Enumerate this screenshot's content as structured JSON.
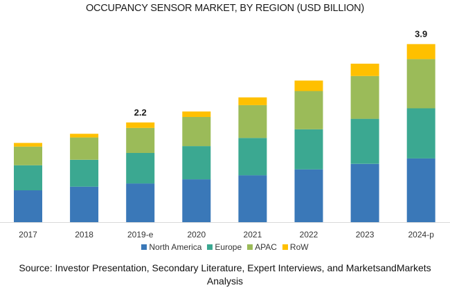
{
  "chart_data": {
    "type": "bar",
    "stacked": true,
    "title": "OCCUPANCY SENSOR MARKET, BY REGION (USD BILLION)",
    "xlabel": "",
    "ylabel": "",
    "ylim": [
      0,
      4.2
    ],
    "grid": false,
    "legend_position": "bottom",
    "categories": [
      "2017",
      "2018",
      "2019-e",
      "2020",
      "2021",
      "2022",
      "2023",
      "2024-p"
    ],
    "series": [
      {
        "name": "North America",
        "color": "#3A78B8",
        "values": [
          0.7,
          0.78,
          0.85,
          0.94,
          1.03,
          1.16,
          1.28,
          1.4
        ]
      },
      {
        "name": "Europe",
        "color": "#3BA891",
        "values": [
          0.55,
          0.59,
          0.67,
          0.73,
          0.82,
          0.88,
          0.99,
          1.1
        ]
      },
      {
        "name": "APAC",
        "color": "#9BBB59",
        "values": [
          0.41,
          0.49,
          0.55,
          0.64,
          0.72,
          0.84,
          0.94,
          1.08
        ]
      },
      {
        "name": "RoW",
        "color": "#FFC000",
        "values": [
          0.08,
          0.08,
          0.12,
          0.12,
          0.17,
          0.23,
          0.27,
          0.33
        ]
      }
    ],
    "annotations": [
      {
        "category": "2019-e",
        "text": "2.2"
      },
      {
        "category": "2024-p",
        "text": "3.9"
      }
    ]
  },
  "source": "Source: Investor Presentation, Secondary Literature, Expert Interviews, and MarketsandMarkets Analysis",
  "axis_color": "#d9d9d9"
}
